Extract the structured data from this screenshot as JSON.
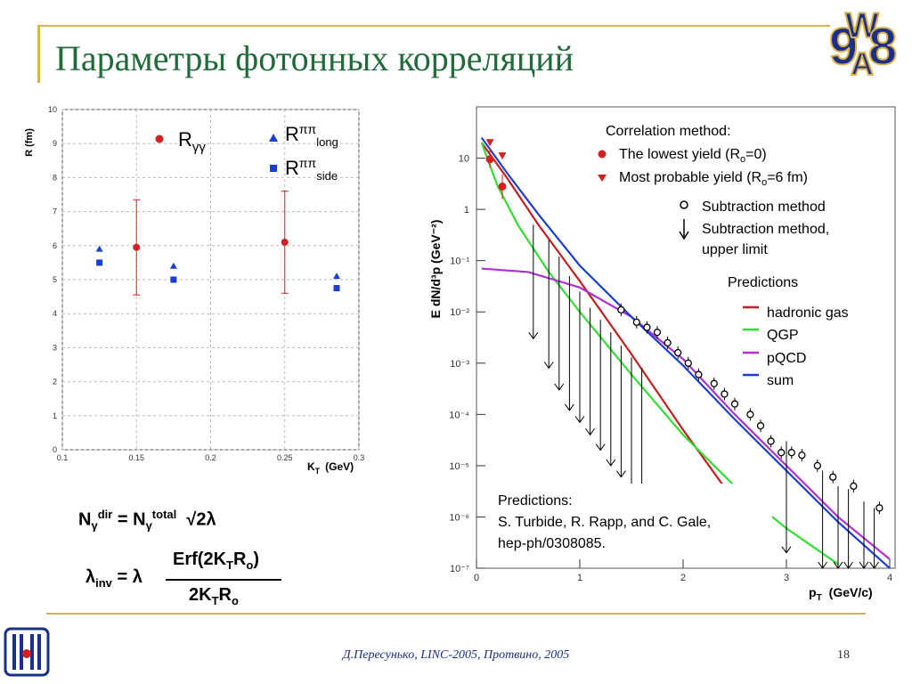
{
  "slide": {
    "title": "Параметры фотонных корреляций",
    "footer": "Д.Пересунько, LINC-2005, Протвино, 2005",
    "page_number": "18"
  },
  "colors": {
    "title": "#1f6b3a",
    "gold": "#d9b24a",
    "red": "#d42020",
    "blue": "#1a3fd0",
    "green": "#33dd33",
    "purple": "#b030d0",
    "navy": "#1a2f8a"
  },
  "left_chart_text": {
    "ylabel": "R (fm)",
    "xlabel_main": "K",
    "xlabel_sub": "T",
    "xlabel_unit": "(GeV)",
    "legend": [
      {
        "main": "R",
        "sub": "γγ",
        "sup": ""
      },
      {
        "main": "R",
        "sup": "ππ",
        "sub": "long"
      },
      {
        "main": "R",
        "sup": "ππ",
        "sub": "side"
      }
    ]
  },
  "right_chart_text": {
    "ylabel": "E dN/d³p (GeV⁻²)",
    "xlabel_main": "p",
    "xlabel_sub": "T",
    "xlabel_unit": "(GeV/c)",
    "legend_correlation_title": "Correlation method:",
    "legend_lowest_pre": "The lowest yield (R",
    "legend_lowest_sub": "o",
    "legend_lowest_post": "=0)",
    "legend_probable_pre": "Most probable yield (R",
    "legend_probable_sub": "o",
    "legend_probable_post": "=6 fm)",
    "legend_subtraction": "Subtraction method",
    "legend_subtraction_ul_1": "Subtraction method,",
    "legend_subtraction_ul_2": "upper limit",
    "legend_predictions": "Predictions",
    "legend_hadronic": "hadronic gas",
    "legend_qgp": "QGP",
    "legend_pqcd": "pQCD",
    "legend_sum": "sum",
    "predictions_box_1": "Predictions:",
    "predictions_box_2": "S. Turbide, R. Rapp, and C. Gale,",
    "predictions_box_3": "hep-ph/0308085."
  },
  "formulas": {
    "f1_lhs_main": "N",
    "f1_lhs_sub": "γ",
    "f1_lhs_sup": "dir",
    "f1_eq": " = N",
    "f1_rhs_sub": "γ",
    "f1_rhs_sup": "total",
    "f1_tail": "√2λ",
    "f2_lhs": "λ",
    "f2_lhs_sub": "inv",
    "f2_eq": " = λ",
    "f2_num_1": "Erf(2K",
    "f2_num_sub1": "T",
    "f2_num_2": "R",
    "f2_num_sub2": "o",
    "f2_num_3": ")",
    "f2_den_1": "2K",
    "f2_den_sub1": "T",
    "f2_den_2": "R",
    "f2_den_sub2": "o"
  },
  "chart_data": [
    {
      "type": "scatter",
      "xlim": [
        0.1,
        0.3
      ],
      "ylim": [
        0,
        10
      ],
      "x_ticks": [
        0.1,
        0.15,
        0.2,
        0.25,
        0.3
      ],
      "y_ticks": [
        0,
        1,
        2,
        3,
        4,
        5,
        6,
        7,
        8,
        9,
        10
      ],
      "grid": true,
      "legend_placement": "top",
      "series": [
        {
          "name": "Rγγ",
          "marker": "circle",
          "color": "#d42020",
          "points": [
            {
              "x": 0.15,
              "y": 5.95,
              "err": 1.4
            },
            {
              "x": 0.25,
              "y": 6.1,
              "err": 1.5
            }
          ]
        },
        {
          "name": "Rππlong",
          "marker": "triangle",
          "color": "#1a3fd0",
          "points": [
            {
              "x": 0.125,
              "y": 5.9
            },
            {
              "x": 0.175,
              "y": 5.4
            },
            {
              "x": 0.285,
              "y": 5.1
            }
          ]
        },
        {
          "name": "Rππside",
          "marker": "square",
          "color": "#1a3fd0",
          "points": [
            {
              "x": 0.125,
              "y": 5.5
            },
            {
              "x": 0.175,
              "y": 5.0
            },
            {
              "x": 0.285,
              "y": 4.75
            }
          ]
        }
      ]
    },
    {
      "type": "line",
      "log_y": true,
      "xlim": [
        0,
        4
      ],
      "ylim": [
        1e-07,
        100
      ],
      "x_ticks": [
        0,
        1,
        2,
        3,
        4
      ],
      "y_tick_labels": [
        "10",
        "1",
        "10⁻¹",
        "10⁻²",
        "10⁻³",
        "10⁻⁴",
        "10⁻⁵",
        "10⁻⁶",
        "10⁻⁷"
      ],
      "y_tick_values": [
        10,
        1,
        0.1,
        0.01,
        0.001,
        0.0001,
        1e-05,
        1e-06,
        1e-07
      ],
      "legend_placement": "top-right",
      "series": [
        {
          "name": "hadronic gas",
          "color": "#c02020",
          "x": [
            0.05,
            0.3,
            0.6,
            1.0,
            1.5,
            2.0,
            2.5,
            2.85
          ],
          "y": [
            20,
            4.0,
            0.5,
            0.04,
            0.0015,
            5e-05,
            2e-06,
            2.5e-07
          ]
        },
        {
          "name": "QGP",
          "color": "#33dd33",
          "x": [
            0.05,
            0.2,
            0.4,
            0.7,
            1.0,
            1.5,
            2.0,
            2.5,
            3.0,
            3.5
          ],
          "y": [
            20,
            3.0,
            0.5,
            0.06,
            0.01,
            0.0006,
            4e-05,
            4e-06,
            6e-07,
            1.2e-07
          ]
        },
        {
          "name": "pQCD",
          "color": "#b030d0",
          "x": [
            0.05,
            0.5,
            1.0,
            1.5,
            2.0,
            2.5,
            3.0,
            3.5,
            4.0
          ],
          "y": [
            0.07,
            0.06,
            0.03,
            0.008,
            0.0012,
            0.0001,
            1e-05,
            1e-06,
            1.5e-07
          ]
        },
        {
          "name": "sum",
          "color": "#1a3fd0",
          "x": [
            0.05,
            0.3,
            0.6,
            1.0,
            1.5,
            2.0,
            2.5,
            3.0,
            3.5,
            4.0
          ],
          "y": [
            25,
            5.0,
            0.8,
            0.08,
            0.008,
            0.0009,
            8e-05,
            8e-06,
            8e-07,
            1e-07
          ]
        }
      ],
      "correlation_lowest": [
        {
          "x": 0.13,
          "y": 9.5,
          "err_up": 6,
          "err_dn": 3
        },
        {
          "x": 0.25,
          "y": 2.8,
          "err_up": 2,
          "err_dn": 1.2
        }
      ],
      "correlation_probable": [
        {
          "x": 0.13,
          "y": 20
        },
        {
          "x": 0.25,
          "y": 11
        }
      ],
      "subtraction": [
        {
          "x": 1.4,
          "y": 0.011
        },
        {
          "x": 1.55,
          "y": 0.0063
        },
        {
          "x": 1.65,
          "y": 0.005
        },
        {
          "x": 1.75,
          "y": 0.004
        },
        {
          "x": 1.85,
          "y": 0.0025
        },
        {
          "x": 1.95,
          "y": 0.0016
        },
        {
          "x": 2.05,
          "y": 0.001
        },
        {
          "x": 2.15,
          "y": 0.0006
        },
        {
          "x": 2.3,
          "y": 0.0004
        },
        {
          "x": 2.4,
          "y": 0.00025
        },
        {
          "x": 2.5,
          "y": 0.00016
        },
        {
          "x": 2.65,
          "y": 0.0001
        },
        {
          "x": 2.75,
          "y": 6e-05
        },
        {
          "x": 2.85,
          "y": 3e-05
        },
        {
          "x": 2.95,
          "y": 1.8e-05
        },
        {
          "x": 3.05,
          "y": 1.8e-05
        },
        {
          "x": 3.15,
          "y": 1.6e-05
        },
        {
          "x": 3.3,
          "y": 1e-05
        },
        {
          "x": 3.45,
          "y": 6e-06
        },
        {
          "x": 3.65,
          "y": 4e-06
        },
        {
          "x": 3.9,
          "y": 1.5e-06
        }
      ],
      "upper_limits": [
        {
          "x": 0.55,
          "top": 0.5,
          "bottom": 0.003
        },
        {
          "x": 0.7,
          "top": 0.25,
          "bottom": 0.0008
        },
        {
          "x": 0.8,
          "top": 0.12,
          "bottom": 0.0003
        },
        {
          "x": 0.9,
          "top": 0.05,
          "bottom": 0.00012
        },
        {
          "x": 1.0,
          "top": 0.025,
          "bottom": 7e-05
        },
        {
          "x": 1.1,
          "top": 0.012,
          "bottom": 4e-05
        },
        {
          "x": 1.2,
          "top": 0.007,
          "bottom": 2e-05
        },
        {
          "x": 1.3,
          "top": 0.004,
          "bottom": 1e-05
        },
        {
          "x": 1.4,
          "top": 0.0022,
          "bottom": 6e-06
        },
        {
          "x": 1.5,
          "top": 0.0013,
          "bottom": 3e-06
        },
        {
          "x": 1.6,
          "top": 0.0008,
          "bottom": 1.5e-06
        },
        {
          "x": 3.0,
          "top": 3e-05,
          "bottom": 2e-07
        },
        {
          "x": 3.35,
          "top": 8e-06,
          "bottom": 1e-07
        },
        {
          "x": 3.5,
          "top": 4e-06,
          "bottom": 1e-07
        },
        {
          "x": 3.6,
          "top": 3.5e-06,
          "bottom": 1e-07
        },
        {
          "x": 3.75,
          "top": 2e-06,
          "bottom": 1e-07
        },
        {
          "x": 3.85,
          "top": 1.5e-06,
          "bottom": 1e-07
        }
      ]
    }
  ]
}
